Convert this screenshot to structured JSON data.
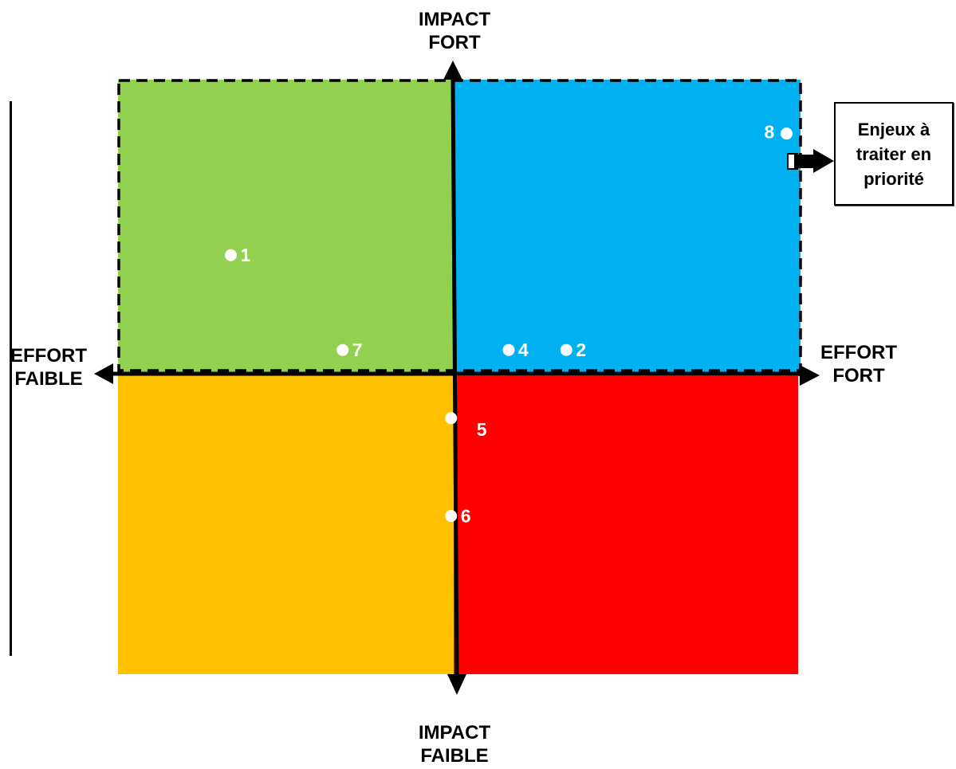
{
  "axes": {
    "top": "IMPACT\nFORT",
    "bottom": "IMPACT\nFAIBLE",
    "left": "EFFORT\nFAIBLE",
    "right": "EFFORT\nFORT"
  },
  "quadrants": [
    {
      "id": "high-impact-low-effort",
      "color": "#92d050"
    },
    {
      "id": "high-impact-high-effort",
      "color": "#00b0f0"
    },
    {
      "id": "low-impact-low-effort",
      "color": "#ffc000"
    },
    {
      "id": "low-impact-high-effort",
      "color": "#ff0000"
    }
  ],
  "points": [
    {
      "label": "1",
      "effort": -0.66,
      "impact": 0.4
    },
    {
      "label": "2",
      "effort": 0.33,
      "impact": 0.08
    },
    {
      "label": "4",
      "effort": 0.16,
      "impact": 0.08
    },
    {
      "label": "5",
      "effort": -0.01,
      "impact": -0.15
    },
    {
      "label": "6",
      "effort": -0.01,
      "impact": -0.48
    },
    {
      "label": "7",
      "effort": -0.33,
      "impact": 0.08
    },
    {
      "label": "8",
      "effort": 0.98,
      "impact": 0.81
    }
  ],
  "callout": {
    "text": "Enjeux à\ntraiter en\npriorité"
  },
  "colors": {
    "axis": "#000000",
    "point": "#ffffff"
  }
}
